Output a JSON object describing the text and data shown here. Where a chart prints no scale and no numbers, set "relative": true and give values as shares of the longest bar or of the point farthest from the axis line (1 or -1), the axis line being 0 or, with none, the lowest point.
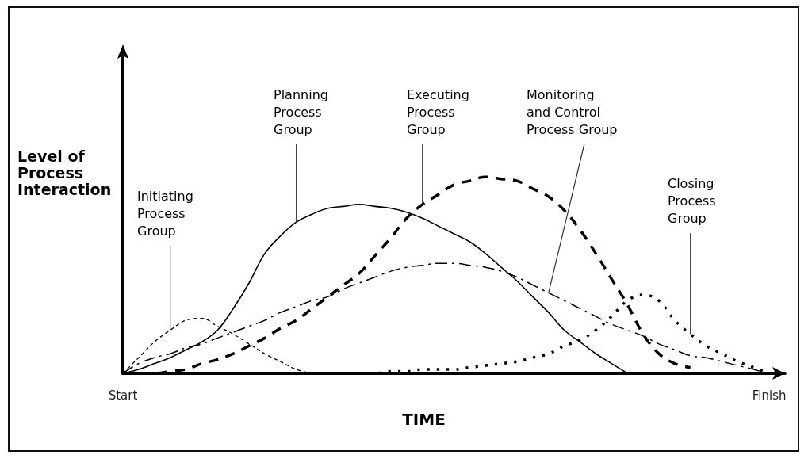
{
  "chart_data": {
    "type": "line",
    "relative": true,
    "xlabel": "TIME",
    "ylabel": "Level of Process Interaction",
    "categories": [
      "Start",
      null,
      null,
      null,
      null,
      null,
      null,
      null,
      null,
      null,
      null,
      null,
      null,
      null,
      null,
      null,
      null,
      null,
      null,
      null,
      null,
      null,
      null,
      null,
      null,
      null,
      null,
      null,
      null,
      null,
      null,
      null,
      null,
      null,
      null,
      null,
      null,
      null,
      null,
      null,
      null,
      "Finish"
    ],
    "series": [
      {
        "name": "Initiating Process Group",
        "color": "#000000",
        "line_style": "dashed",
        "values": [
          0,
          0.08,
          0.16,
          0.22,
          0.27,
          0.28,
          0.24,
          0.2,
          0.15,
          0.1,
          0.06,
          0.02,
          0,
          null,
          null,
          null,
          null,
          null,
          null,
          null,
          null,
          null,
          null,
          null,
          null,
          null,
          null,
          null,
          null,
          null,
          null,
          null,
          null,
          null,
          null,
          null,
          null,
          null,
          null,
          null,
          null,
          null
        ]
      },
      {
        "name": "Planning Process Group",
        "color": "#000000",
        "line_style": "solid",
        "values": [
          0,
          0.02,
          0.05,
          0.08,
          0.12,
          0.16,
          0.22,
          0.33,
          0.46,
          0.61,
          0.7,
          0.77,
          0.81,
          0.84,
          0.85,
          0.86,
          0.85,
          0.84,
          0.82,
          0.79,
          0.75,
          0.71,
          0.67,
          0.61,
          0.54,
          0.47,
          0.39,
          0.31,
          0.22,
          0.16,
          0.1,
          0.05,
          0,
          null,
          null,
          null,
          null,
          null,
          null,
          null,
          null,
          null
        ]
      },
      {
        "name": "Executing Process Group",
        "color": "#000000",
        "line_style": "dashed",
        "values": [
          0,
          0,
          0,
          0.01,
          0.02,
          0.05,
          0.07,
          0.1,
          0.14,
          0.18,
          0.23,
          0.27,
          0.33,
          0.39,
          0.45,
          0.51,
          0.6,
          0.69,
          0.79,
          0.86,
          0.91,
          0.96,
          0.98,
          1,
          0.99,
          0.98,
          0.94,
          0.9,
          0.83,
          0.73,
          0.61,
          0.48,
          0.35,
          0.2,
          0.1,
          0.05,
          0.03,
          null,
          null,
          null,
          null,
          null
        ]
      },
      {
        "name": "Monitoring and Control Process Group",
        "color": "#000000",
        "line_style": "dashdot",
        "values": [
          0,
          0.05,
          0.08,
          0.1,
          0.13,
          0.15,
          0.18,
          0.21,
          0.24,
          0.27,
          0.31,
          0.34,
          0.37,
          0.39,
          0.43,
          0.46,
          0.49,
          0.52,
          0.54,
          0.55,
          0.56,
          0.56,
          0.55,
          0.54,
          0.52,
          0.49,
          0.45,
          0.41,
          0.37,
          0.33,
          0.29,
          0.25,
          0.22,
          0.19,
          0.15,
          0.12,
          0.09,
          0.08,
          0.06,
          0.04,
          0.02,
          0
        ]
      },
      {
        "name": "Closing Process Group",
        "color": "#000000",
        "line_style": "dotted",
        "values": [
          null,
          null,
          null,
          null,
          null,
          null,
          null,
          null,
          null,
          null,
          null,
          null,
          null,
          null,
          null,
          0,
          0,
          0.01,
          0.01,
          0.02,
          0.02,
          0.02,
          0.03,
          0.04,
          0.05,
          0.06,
          0.08,
          0.1,
          0.14,
          0.17,
          0.22,
          0.29,
          0.37,
          0.4,
          0.37,
          0.27,
          0.2,
          0.14,
          0.1,
          0.06,
          0.03,
          0
        ]
      }
    ]
  }
}
